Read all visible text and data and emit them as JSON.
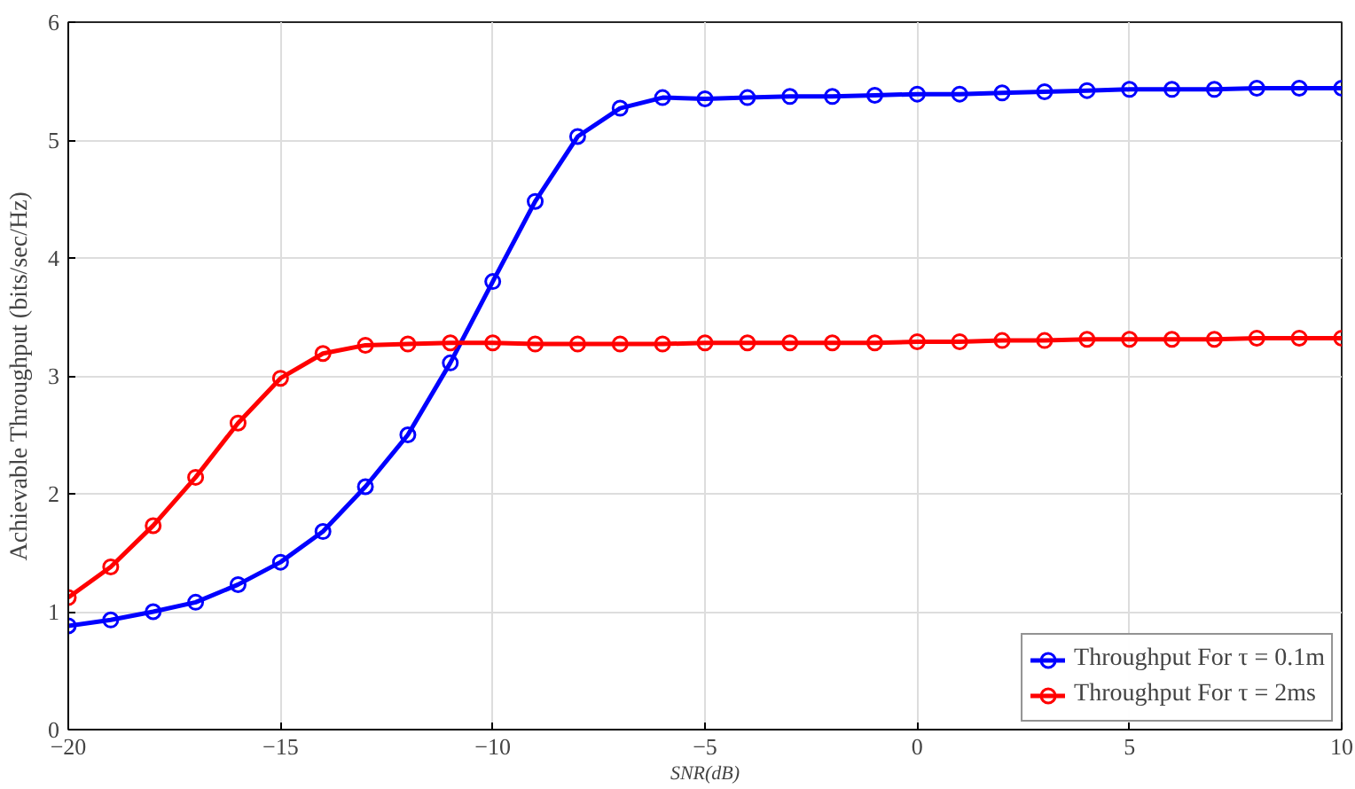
{
  "chart_data": {
    "type": "line",
    "xlabel": "SNR(dB)",
    "ylabel": "Achievable Throughput (bits/sec/Hz)",
    "x": [
      -20,
      -19,
      -18,
      -17,
      -16,
      -15,
      -14,
      -13,
      -12,
      -11,
      -10,
      -9,
      -8,
      -7,
      -6,
      -5,
      -4,
      -3,
      -2,
      -1,
      0,
      1,
      2,
      3,
      4,
      5,
      6,
      7,
      8,
      9,
      10
    ],
    "series": [
      {
        "name": "Throughput For τ = 0.1m",
        "color": "#0000ff",
        "values": [
          0.88,
          0.93,
          1.0,
          1.08,
          1.23,
          1.42,
          1.68,
          2.06,
          2.5,
          3.11,
          3.8,
          4.48,
          5.03,
          5.27,
          5.36,
          5.35,
          5.36,
          5.37,
          5.37,
          5.38,
          5.39,
          5.39,
          5.4,
          5.41,
          5.42,
          5.43,
          5.43,
          5.43,
          5.44,
          5.44,
          5.44
        ]
      },
      {
        "name": "Throughput For τ = 2ms",
        "color": "#ff0000",
        "values": [
          1.12,
          1.38,
          1.73,
          2.14,
          2.6,
          2.98,
          3.19,
          3.26,
          3.27,
          3.28,
          3.28,
          3.27,
          3.27,
          3.27,
          3.27,
          3.28,
          3.28,
          3.28,
          3.28,
          3.28,
          3.29,
          3.29,
          3.3,
          3.3,
          3.31,
          3.31,
          3.31,
          3.31,
          3.32,
          3.32,
          3.32
        ]
      }
    ],
    "xlim": [
      -20,
      10
    ],
    "xticks": [
      -20,
      -15,
      -10,
      -5,
      0,
      5,
      10
    ],
    "ylim": [
      0,
      6
    ],
    "yticks": [
      0,
      1,
      2,
      3,
      4,
      5,
      6
    ],
    "grid": true,
    "legend": "bottom right",
    "marker": "circle",
    "line_style": "solid"
  }
}
